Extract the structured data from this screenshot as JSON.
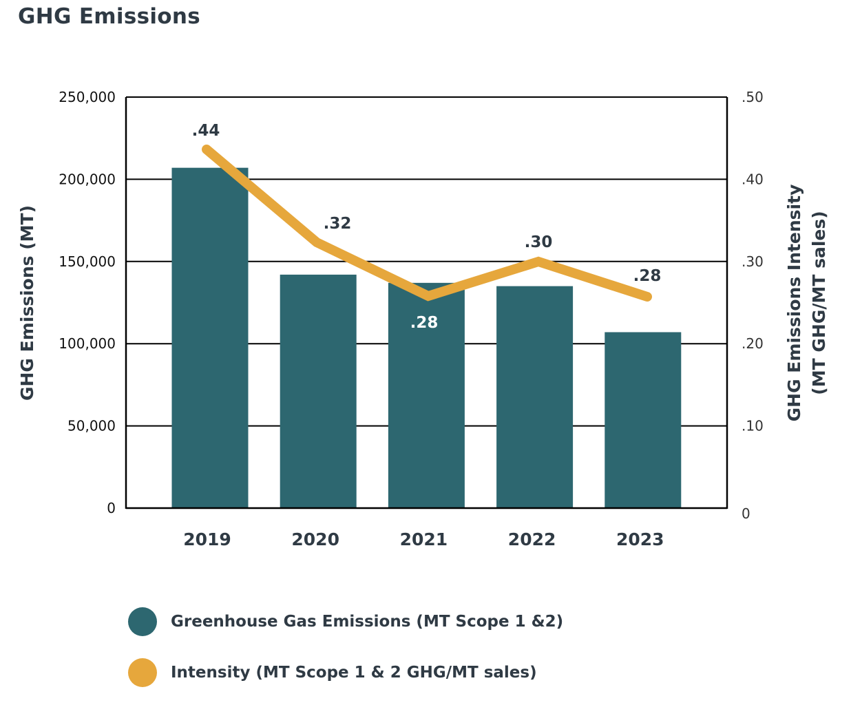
{
  "title": "GHG Emissions",
  "colors": {
    "bars": "#2d6770",
    "line": "#e6a73c",
    "text": "#2f3a44"
  },
  "legend": [
    {
      "label": "Greenhouse Gas Emissions (MT Scope 1 &2)",
      "color": "#2d6770"
    },
    {
      "label": "Intensity (MT Scope 1 & 2 GHG/MT sales)",
      "color": "#e6a73c"
    }
  ],
  "chart_data": {
    "type": "bar",
    "title": "GHG Emissions",
    "categories": [
      "2019",
      "2020",
      "2021",
      "2022",
      "2023"
    ],
    "series": [
      {
        "name": "Greenhouse Gas Emissions (MT Scope 1 &2)",
        "type": "bar",
        "axis": "left",
        "values": [
          207000,
          142000,
          137000,
          135000,
          107000
        ]
      },
      {
        "name": "Intensity (MT Scope 1 & 2 GHG/MT sales)",
        "type": "line",
        "axis": "right",
        "values": [
          0.44,
          0.32,
          0.28,
          0.3,
          0.28
        ]
      }
    ],
    "data_labels": [
      ".44",
      ".32",
      ".28",
      ".30",
      ".28"
    ],
    "ylabel": "GHG Emissions (MT)",
    "ylabel_right": [
      "GHG Emissions Intensity",
      "(MT GHG/MT sales)"
    ],
    "ylim": [
      0,
      250000
    ],
    "ylim_right": [
      0,
      0.5
    ],
    "yticks": [
      "0",
      "50,000",
      "100,000",
      "150,000",
      "200,000",
      "250,000"
    ],
    "yticks_right": [
      "0",
      ".10",
      ".20",
      ".30",
      ".40",
      ".50"
    ],
    "grid": true,
    "legend_position": "bottom"
  }
}
